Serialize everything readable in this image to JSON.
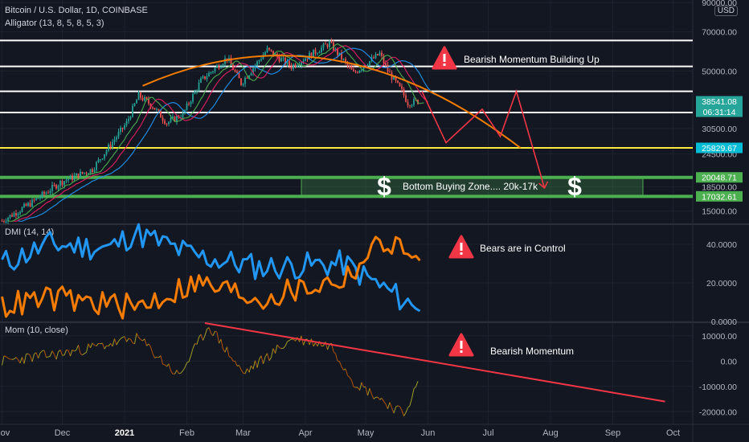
{
  "header": {
    "symbol_line": "Bitcoin / U.S. Dollar, 1D, COINBASE",
    "indicator_line": "Alligator (13, 8, 5, 8, 5, 3)",
    "currency": "USD"
  },
  "colors": {
    "background": "#131722",
    "bull": "#26a69a",
    "bear": "#ef5350",
    "orange": "#f57c00",
    "blue": "#2196f3",
    "red": "#f23645",
    "green": "#4caf50",
    "yellow": "#ffeb3b",
    "cyan": "#00bcd4"
  },
  "chart_data": [
    {
      "type": "candlestick",
      "panel": "price",
      "title": "Bitcoin / U.S. Dollar, 1D, COINBASE",
      "yscale": "log",
      "ylim": [
        13500,
        92000
      ],
      "y_ticks": [
        "90000.00",
        "70000.00",
        "50000.00",
        "30500.00",
        "24500.00",
        "18500.00",
        "15000.00"
      ],
      "x_ticks": [
        "Nov",
        "Dec",
        "2021",
        "Feb",
        "Mar",
        "Apr",
        "May",
        "Jun",
        "Jul",
        "Aug",
        "Sep",
        "Oct"
      ],
      "price_points": {
        "dates": [
          "2020-11-01",
          "2020-11-15",
          "2020-11-30",
          "2020-12-16",
          "2021-01-02",
          "2021-01-08",
          "2021-01-15",
          "2021-01-22",
          "2021-01-30",
          "2021-02-08",
          "2021-02-21",
          "2021-02-28",
          "2021-03-13",
          "2021-03-25",
          "2021-04-13",
          "2021-04-25",
          "2021-05-08",
          "2021-05-12",
          "2021-05-19",
          "2021-05-22",
          "2021-05-27"
        ],
        "close": [
          13800,
          16000,
          19200,
          21500,
          32000,
          40500,
          37000,
          32000,
          34500,
          46000,
          56000,
          45000,
          60000,
          52000,
          63500,
          49000,
          58000,
          50000,
          42000,
          38000,
          38500
        ]
      },
      "horizontal_levels": [
        {
          "price": 65000,
          "color": "#ffffff"
        },
        {
          "price": 52000,
          "color": "#ffffff"
        },
        {
          "price": 42000,
          "color": "#ffffff"
        },
        {
          "price": 35000,
          "color": "#ffffff"
        },
        {
          "price": 25829.67,
          "color": "#ffeb3b"
        },
        {
          "price": 20048.71,
          "color": "#4caf50"
        },
        {
          "price": 17032.61,
          "color": "#4caf50"
        }
      ],
      "price_labels": [
        {
          "text": "38541.08",
          "subtext": "06:31:14",
          "color": "#26a69a",
          "price": 38541.08
        },
        {
          "text": "25829.67",
          "color": "#00bcd4",
          "price": 25829.67
        },
        {
          "text": "20048.71",
          "color": "#4caf50",
          "price": 20048.71
        },
        {
          "text": "17032.61",
          "color": "#4caf50",
          "price": 17032.61
        }
      ],
      "annotations": [
        {
          "text": "Bearish Momentum Building Up",
          "icon": "warning-icon"
        },
        {
          "text": "$",
          "icon": "dollar-icon"
        },
        {
          "text": "Bottom Buying Zone.... 20k-17k"
        },
        {
          "text": "$",
          "icon": "dollar-icon"
        }
      ],
      "projection_path": {
        "dates": [
          "2021-05-29",
          "2021-06-10",
          "2021-06-28",
          "2021-07-07",
          "2021-07-15",
          "2021-07-29"
        ],
        "prices": [
          42000,
          27000,
          36000,
          28500,
          42000,
          18300
        ]
      },
      "rounded_top": {
        "start": "2021-01-10",
        "peak": "2021-04-14",
        "end": "2021-07-17"
      }
    },
    {
      "type": "line",
      "panel": "dmi",
      "title": "DMI (14, 14)",
      "ylim": [
        0,
        50
      ],
      "y_ticks": [
        "40.0000",
        "20.0000",
        "0.0000"
      ],
      "series": [
        {
          "color": "#2196f3",
          "x": [
            "2020-11-01",
            "2020-11-25",
            "2020-12-25",
            "2021-01-06",
            "2021-02-05",
            "2021-03-10",
            "2021-04-20",
            "2021-05-15",
            "2021-05-28"
          ],
          "values": [
            30,
            40,
            38,
            46,
            34,
            28,
            30,
            14,
            6
          ]
        },
        {
          "color": "#f57c00",
          "x": [
            "2020-11-01",
            "2020-11-25",
            "2020-12-25",
            "2021-01-06",
            "2021-02-05",
            "2021-03-10",
            "2021-04-20",
            "2021-05-10",
            "2021-05-28"
          ],
          "values": [
            8,
            12,
            9,
            7,
            20,
            12,
            22,
            42,
            32
          ]
        }
      ],
      "annotations": [
        {
          "text": "Bears are in Control",
          "icon": "warning-icon"
        }
      ]
    },
    {
      "type": "line",
      "panel": "momentum",
      "title": "Mom (10, close)",
      "ylim": [
        -25000,
        15000
      ],
      "y_ticks": [
        "10000.00",
        "0.00",
        "-10000.00",
        "-20000.00"
      ],
      "series": [
        {
          "x": [
            "2020-11-01",
            "2020-12-01",
            "2021-01-08",
            "2021-01-28",
            "2021-02-12",
            "2021-03-01",
            "2021-03-26",
            "2021-04-14",
            "2021-04-25",
            "2021-05-20",
            "2021-05-27"
          ],
          "values": [
            0,
            3000,
            9000,
            -6000,
            14000,
            -5000,
            9000,
            6000,
            -8000,
            -21000,
            -9000
          ]
        }
      ],
      "trendline": {
        "x": [
          "2021-02-10",
          "2021-09-27"
        ],
        "values": [
          15000,
          -16000
        ],
        "color": "#f23645"
      },
      "annotations": [
        {
          "text": "Bearish Momentum",
          "icon": "warning-icon"
        }
      ]
    }
  ]
}
